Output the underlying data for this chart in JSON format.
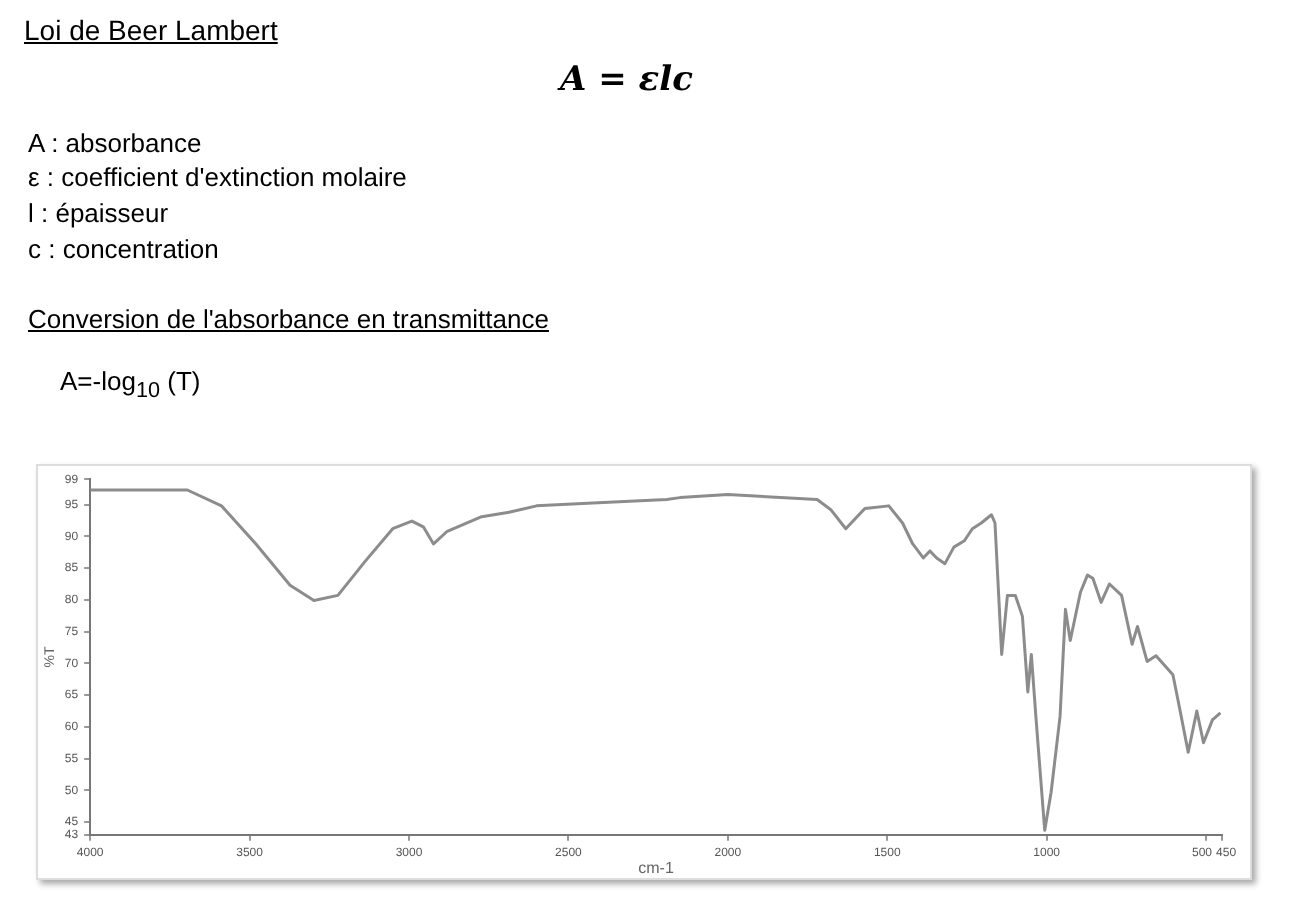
{
  "chart_data": {
    "type": "line",
    "title": "Loi de Beer Lambert",
    "annotations": [
      "A = εlc",
      "A : absorbance",
      "ε : coefficient d'extinction molaire",
      "l : épaisseur",
      "c : concentration",
      "Conversion de l'absorbance en transmittance",
      "A=-log$_{10}$ (T)"
    ],
    "xlabel": "cm-1",
    "ylabel": "%T",
    "series": [
      {
        "color": "#8c8c8c",
        "x": [
          4000,
          3695,
          3588,
          3480,
          3373,
          3298,
          3223,
          3137,
          3051,
          2991,
          2955,
          2923,
          2880,
          2772,
          2686,
          2600,
          2407,
          2192,
          2150,
          2000,
          1720,
          1677,
          1630,
          1570,
          1495,
          1452,
          1420,
          1387,
          1366,
          1345,
          1319,
          1291,
          1258,
          1233,
          1205,
          1173,
          1162,
          1141,
          1123,
          1098,
          1076,
          1059,
          1048,
          1033,
          1006,
          986,
          958,
          941,
          926,
          894,
          872,
          855,
          829,
          803,
          765,
          732,
          715,
          685,
          657,
          604,
          582,
          556,
          529,
          508,
          480,
          455
        ],
        "values": [
          97.3,
          97.3,
          94.8,
          88.8,
          82.3,
          79.9,
          80.7,
          86.1,
          91.2,
          92.4,
          91.5,
          88.8,
          90.8,
          93.1,
          93.8,
          94.8,
          95.3,
          95.8,
          96.1,
          96.6,
          95.8,
          94.2,
          91.2,
          94.4,
          94.8,
          92.1,
          88.8,
          86.6,
          87.7,
          86.6,
          85.7,
          88.3,
          89.3,
          91.2,
          92.1,
          93.4,
          92.1,
          71.4,
          80.7,
          80.7,
          77.4,
          65.5,
          71.4,
          61.1,
          43.7,
          49.7,
          61.6,
          78.5,
          73.6,
          81.2,
          83.9,
          83.4,
          79.6,
          82.5,
          80.7,
          73.0,
          75.8,
          70.3,
          71.2,
          68.2,
          62.7,
          56.0,
          62.5,
          57.5,
          61.1,
          62.2
        ]
      }
    ],
    "xlim": [
      4000,
      450
    ],
    "xticks": [
      4000,
      3500,
      3000,
      2500,
      2000,
      1500,
      1000,
      500,
      450
    ],
    "ylim": [
      43,
      99
    ],
    "yticks": [
      43,
      45,
      50,
      55,
      60,
      65,
      70,
      75,
      80,
      85,
      90,
      95,
      99
    ],
    "grid": false,
    "legend": false,
    "marker": "none",
    "line_style": "solid"
  }
}
